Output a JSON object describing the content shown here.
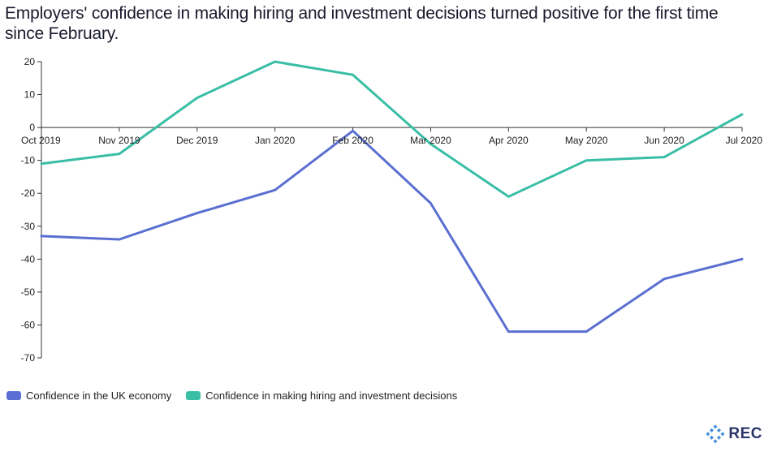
{
  "title": "Employers' confidence in making hiring and investment decisions turned positive for the first time since February.",
  "logo": {
    "text": "REC"
  },
  "colors": {
    "series_economy": "#5a6fd1",
    "series_hiring": "#39bea5",
    "axis": "#333333",
    "logo": "#2a3567"
  },
  "chart_data": {
    "type": "line",
    "title": "Employers' confidence in making hiring and investment decisions turned positive for the first time since February.",
    "xlabel": "",
    "ylabel": "",
    "categories": [
      "Oct 2019",
      "Nov 2019",
      "Dec 2019",
      "Jan 2020",
      "Feb 2020",
      "Mar 2020",
      "Apr 2020",
      "May 2020",
      "Jun 2020",
      "Jul 2020"
    ],
    "y_ticks": [
      "20",
      "10",
      "0",
      "-10",
      "-20",
      "-30",
      "-40",
      "-50",
      "-60",
      "-70"
    ],
    "ylim": [
      -70,
      20
    ],
    "grid": false,
    "legend_position": "bottom-left",
    "series": [
      {
        "name": "Confidence in the UK economy",
        "color": "#5a6fd1",
        "values": [
          -33,
          -34,
          -26,
          -19,
          -1,
          -23,
          -62,
          -62,
          -46,
          -40
        ]
      },
      {
        "name": "Confidence in making hiring and investment decisions",
        "color": "#39bea5",
        "values": [
          -11,
          -8,
          9,
          20,
          16,
          -5,
          -21,
          -10,
          -9,
          4
        ]
      }
    ]
  }
}
